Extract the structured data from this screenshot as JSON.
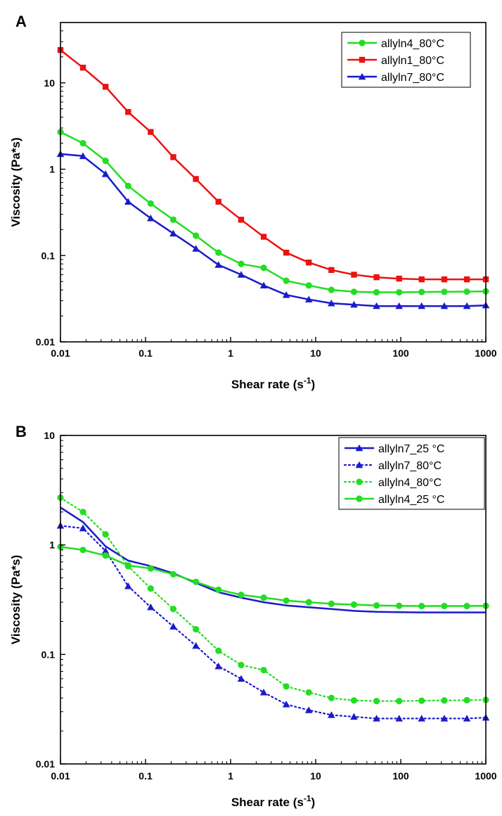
{
  "chart_data": [
    {
      "type": "line",
      "panel": "A",
      "xlabel": "Shear rate (s",
      "xlabel_sup": "-1",
      "xlabel_suffix": ")",
      "ylabel": "Viscosity (Pa*s)",
      "xscale": "log",
      "yscale": "log",
      "xlim": [
        0.01,
        1000
      ],
      "ylim": [
        0.01,
        50
      ],
      "x_ticks": [
        0.01,
        0.1,
        1,
        10,
        100,
        1000
      ],
      "x_tick_labels": [
        "0.01",
        "0.1",
        "1",
        "10",
        "100",
        "1000"
      ],
      "y_ticks": [
        0.01,
        0.1,
        1,
        10
      ],
      "y_tick_labels": [
        "0.01",
        "0.1",
        "1",
        "10"
      ],
      "grid": false,
      "legend_position": "top-right",
      "x": [
        0.01,
        0.0184,
        0.0339,
        0.0625,
        0.115,
        0.212,
        0.391,
        0.72,
        1.33,
        2.45,
        4.51,
        8.3,
        15.3,
        28.2,
        51.9,
        95.7,
        176,
        325,
        599,
        1000
      ],
      "series": [
        {
          "name": "allyln4_80°C",
          "color": "#22dd22",
          "marker": "circle",
          "line": "solid",
          "values": [
            2.7,
            2.0,
            1.25,
            0.64,
            0.4,
            0.26,
            0.17,
            0.108,
            0.08,
            0.072,
            0.051,
            0.045,
            0.04,
            0.038,
            0.0375,
            0.0375,
            0.0378,
            0.038,
            0.0382,
            0.0385
          ]
        },
        {
          "name": "allyln1_80°C",
          "color": "#ee1111",
          "marker": "square",
          "line": "solid",
          "values": [
            24,
            15,
            9.0,
            4.6,
            2.7,
            1.38,
            0.77,
            0.42,
            0.26,
            0.165,
            0.108,
            0.083,
            0.068,
            0.06,
            0.056,
            0.054,
            0.053,
            0.053,
            0.053,
            0.053
          ]
        },
        {
          "name": "allyln7_80°C",
          "color": "#1a1acc",
          "marker": "triangle",
          "line": "solid",
          "values": [
            1.5,
            1.42,
            0.88,
            0.42,
            0.27,
            0.18,
            0.12,
            0.078,
            0.06,
            0.045,
            0.035,
            0.031,
            0.028,
            0.027,
            0.026,
            0.026,
            0.026,
            0.026,
            0.026,
            0.0265
          ]
        }
      ]
    },
    {
      "type": "line",
      "panel": "B",
      "xlabel": "Shear rate (s",
      "xlabel_sup": "-1",
      "xlabel_suffix": ")",
      "ylabel": "Viscosity (Pa*s)",
      "xscale": "log",
      "yscale": "log",
      "xlim": [
        0.01,
        1000
      ],
      "ylim": [
        0.01,
        10
      ],
      "x_ticks": [
        0.01,
        0.1,
        1,
        10,
        100,
        1000
      ],
      "x_tick_labels": [
        "0.01",
        "0.1",
        "1",
        "10",
        "100",
        "1000"
      ],
      "y_ticks": [
        0.01,
        0.1,
        1,
        10
      ],
      "y_tick_labels": [
        "0.01",
        "0.1",
        "1",
        "10"
      ],
      "grid": false,
      "legend_position": "top-right",
      "x": [
        0.01,
        0.0184,
        0.0339,
        0.0625,
        0.115,
        0.212,
        0.391,
        0.72,
        1.33,
        2.45,
        4.51,
        8.3,
        15.3,
        28.2,
        51.9,
        95.7,
        176,
        325,
        599,
        1000
      ],
      "series": [
        {
          "name": "allyln7_25 °C",
          "color": "#1a1acc",
          "marker": "triangle",
          "line": "solid",
          "show_markers": false,
          "values": [
            2.2,
            1.62,
            0.97,
            0.72,
            0.64,
            0.55,
            0.45,
            0.37,
            0.33,
            0.3,
            0.28,
            0.27,
            0.26,
            0.25,
            0.245,
            0.243,
            0.242,
            0.242,
            0.242,
            0.242
          ]
        },
        {
          "name": "allyln7_80°C",
          "color": "#1a1acc",
          "marker": "triangle",
          "line": "dotted",
          "values": [
            1.5,
            1.42,
            0.88,
            0.42,
            0.27,
            0.18,
            0.12,
            0.078,
            0.06,
            0.045,
            0.035,
            0.031,
            0.028,
            0.027,
            0.026,
            0.026,
            0.026,
            0.026,
            0.026,
            0.0265
          ]
        },
        {
          "name": "allyln4_80°C",
          "color": "#22dd22",
          "marker": "circle",
          "line": "dotted",
          "values": [
            2.7,
            2.0,
            1.25,
            0.64,
            0.4,
            0.26,
            0.17,
            0.108,
            0.08,
            0.072,
            0.051,
            0.045,
            0.04,
            0.038,
            0.0375,
            0.0375,
            0.0378,
            0.038,
            0.0382,
            0.0385
          ]
        },
        {
          "name": "allyln4_25 °C",
          "color": "#22dd22",
          "marker": "circle",
          "line": "solid",
          "values": [
            0.96,
            0.9,
            0.8,
            0.65,
            0.61,
            0.54,
            0.46,
            0.39,
            0.35,
            0.33,
            0.31,
            0.3,
            0.29,
            0.285,
            0.28,
            0.278,
            0.277,
            0.277,
            0.277,
            0.278
          ]
        }
      ]
    }
  ]
}
